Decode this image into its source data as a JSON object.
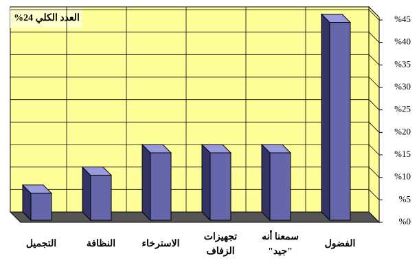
{
  "chart_data": {
    "type": "bar3d",
    "title": "العدد الكلي 24%",
    "categories": [
      "التجميل",
      "النظافة",
      "الاسترخاء",
      "تجهيزات\nالزفاف",
      "سمعنا أنه\n\"جيد\"",
      "الفضول"
    ],
    "values": [
      6,
      10,
      15,
      15,
      15,
      44
    ],
    "color": "#6666aa",
    "ylim": [
      0,
      45
    ],
    "yticks": [
      {
        "value": 0,
        "label": "%0"
      },
      {
        "value": 5,
        "label": "%5"
      },
      {
        "value": 10,
        "label": "%10"
      },
      {
        "value": 15,
        "label": "%15"
      },
      {
        "value": 20,
        "label": "%20"
      },
      {
        "value": 25,
        "label": "%25"
      },
      {
        "value": 30,
        "label": "%30"
      },
      {
        "value": 35,
        "label": "%35"
      },
      {
        "value": 40,
        "label": "%40"
      },
      {
        "value": 45,
        "label": "%45"
      }
    ],
    "grid": true
  }
}
